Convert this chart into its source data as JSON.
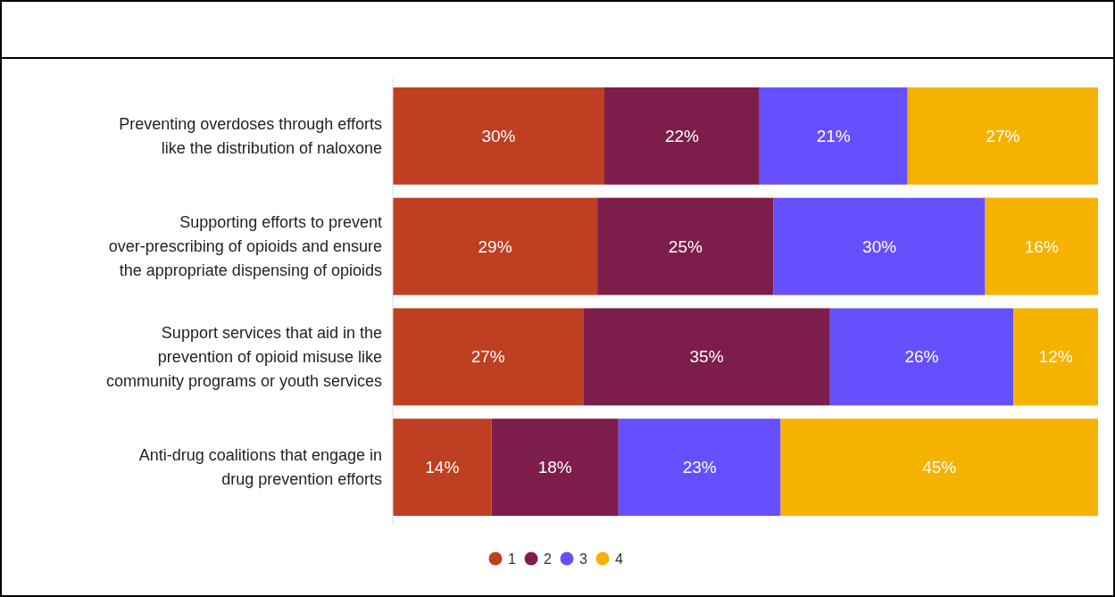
{
  "chart_data": {
    "type": "bar",
    "orientation": "horizontal",
    "stacked": true,
    "legend": "bottom",
    "tick_labels": "y",
    "categories": [
      "Preventing overdoses through efforts like the distribution of naloxone",
      "Supporting efforts to prevent over-prescribing of opioids and ensure the appropriate dispensing of opioids",
      "Support services that aid in the prevention of opioid misuse like community programs or youth services",
      "Anti-drug coalitions that engage in drug prevention efforts"
    ],
    "series": [
      {
        "name": "1",
        "color": "#be3f22",
        "values": [
          30,
          29,
          27,
          14
        ],
        "value_labels": [
          "30%",
          "29%",
          "27%",
          "14%"
        ]
      },
      {
        "name": "2",
        "color": "#7d1d4b",
        "values": [
          22,
          25,
          35,
          18
        ],
        "value_labels": [
          "22%",
          "25%",
          "35%",
          "18%"
        ]
      },
      {
        "name": "3",
        "color": "#6650fe",
        "values": [
          21,
          30,
          26,
          23
        ],
        "value_labels": [
          "21%",
          "30%",
          "26%",
          "23%"
        ]
      },
      {
        "name": "4",
        "color": "#f6b200",
        "values": [
          27,
          16,
          12,
          45
        ],
        "value_labels": [
          "27%",
          "16%",
          "12%",
          "45%"
        ]
      }
    ]
  }
}
